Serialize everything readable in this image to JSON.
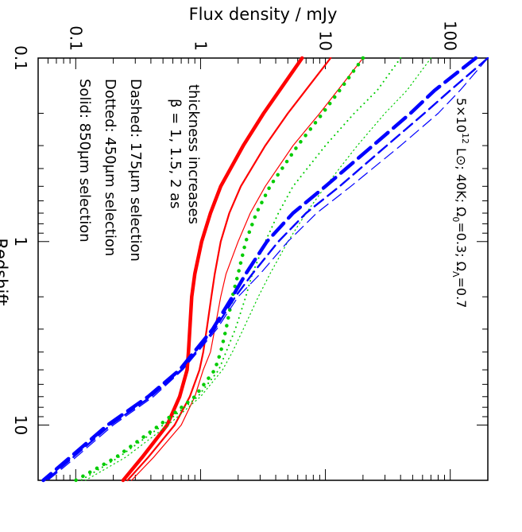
{
  "chart_data": {
    "type": "line",
    "orientation": "rotated-90-clockwise",
    "x_axis": {
      "label": "Redshift",
      "scale": "log",
      "range": [
        0.1,
        20
      ],
      "tick_labels": [
        "0.1",
        "1",
        "10"
      ]
    },
    "y_axis": {
      "label": "Flux density / mJy",
      "scale": "log",
      "range": [
        0.05,
        200
      ],
      "tick_labels": [
        "100",
        "10",
        "1",
        "0.1"
      ]
    },
    "annotations": {
      "legend_lines": [
        "Solid: 850μm selection",
        "Dotted: 450μm selection",
        "Dashed: 175μm selection"
      ],
      "beta_lines": [
        "β = 1, 1.5, 2 as",
        "thickness increases"
      ],
      "model_prefix": "5×10",
      "model_exp": "12",
      "model_text": " L⊙; 40K; Ω",
      "model_om_sub": "0",
      "model_mid": "=0.3; Ω",
      "model_ol_sub": "Λ",
      "model_end": "=0.7"
    },
    "series": [
      {
        "name": "850μm, β=1",
        "color": "#ff0000",
        "dash": "solid",
        "width": 1.2,
        "x": [
          0.1,
          0.2,
          0.3,
          0.5,
          0.7,
          1,
          1.5,
          2,
          3,
          4,
          5,
          7,
          10,
          15,
          20
        ],
        "y": [
          20,
          9,
          5.5,
          3.3,
          2.5,
          2.0,
          1.6,
          1.45,
          1.3,
          1.2,
          1.05,
          0.9,
          0.7,
          0.42,
          0.28
        ]
      },
      {
        "name": "850μm, β=1.5",
        "color": "#ff0000",
        "dash": "solid",
        "width": 2.2,
        "x": [
          0.1,
          0.2,
          0.3,
          0.5,
          0.7,
          1,
          1.5,
          2,
          3,
          4,
          5,
          7,
          10,
          15,
          20
        ],
        "y": [
          11,
          5.0,
          3.3,
          2.1,
          1.7,
          1.45,
          1.3,
          1.22,
          1.12,
          1.05,
          0.98,
          0.82,
          0.62,
          0.38,
          0.26
        ]
      },
      {
        "name": "850μm, β=2",
        "color": "#ff0000",
        "dash": "solid",
        "width": 4.5,
        "x": [
          0.1,
          0.2,
          0.3,
          0.5,
          0.7,
          1,
          1.5,
          2,
          3,
          4,
          5,
          7,
          10,
          15,
          20
        ],
        "y": [
          6.5,
          3.2,
          2.2,
          1.45,
          1.2,
          1.02,
          0.9,
          0.85,
          0.82,
          0.8,
          0.78,
          0.68,
          0.54,
          0.34,
          0.24
        ]
      },
      {
        "name": "450μm, β=1",
        "color": "#00cc00",
        "dash": "dotted-fine",
        "width": 1.2,
        "x": [
          0.1,
          0.15,
          0.2,
          0.3,
          0.5,
          0.7,
          1,
          1.5,
          2,
          3,
          4,
          5,
          7,
          10,
          15,
          20
        ],
        "y": [
          70,
          45,
          30,
          18,
          10,
          7,
          5,
          3.6,
          2.9,
          2.2,
          1.8,
          1.5,
          1.0,
          0.55,
          0.25,
          0.12
        ]
      },
      {
        "name": "450μm, β=1.5",
        "color": "#00cc00",
        "dash": "dotted-medium",
        "width": 2,
        "x": [
          0.1,
          0.15,
          0.2,
          0.3,
          0.5,
          0.7,
          1,
          1.5,
          2,
          3,
          4,
          5,
          7,
          10,
          15,
          20
        ],
        "y": [
          40,
          26,
          17,
          10,
          5.5,
          4.2,
          3.3,
          2.6,
          2.3,
          1.9,
          1.6,
          1.4,
          0.95,
          0.5,
          0.22,
          0.11
        ]
      },
      {
        "name": "450μm, β=2",
        "color": "#00cc00",
        "dash": "dotted-heavy",
        "width": 4.5,
        "x": [
          0.1,
          0.15,
          0.2,
          0.3,
          0.5,
          0.7,
          1,
          1.5,
          2,
          3,
          4,
          5,
          7,
          10,
          15,
          20
        ],
        "y": [
          20,
          13,
          9.5,
          6.0,
          3.6,
          2.8,
          2.3,
          2.0,
          1.8,
          1.6,
          1.45,
          1.3,
          0.9,
          0.47,
          0.21,
          0.1
        ]
      },
      {
        "name": "175μm, β=1",
        "color": "#0000ff",
        "dash": "dashed",
        "width": 1.2,
        "x": [
          0.1,
          0.15,
          0.2,
          0.3,
          0.5,
          0.7,
          1,
          1.5,
          2,
          3,
          5,
          7,
          10,
          15,
          20
        ],
        "y": [
          200,
          120,
          80,
          40,
          16,
          8.5,
          5.0,
          3.0,
          2.0,
          1.35,
          0.72,
          0.42,
          0.2,
          0.1,
          0.06
        ]
      },
      {
        "name": "175μm, β=1.5",
        "color": "#0000ff",
        "dash": "dashed",
        "width": 2.4,
        "x": [
          0.1,
          0.15,
          0.2,
          0.3,
          0.5,
          0.7,
          1,
          1.5,
          2,
          3,
          5,
          7,
          10,
          15,
          20
        ],
        "y": [
          200,
          100,
          62,
          31,
          13,
          7.0,
          4.2,
          2.6,
          1.9,
          1.3,
          0.7,
          0.4,
          0.19,
          0.095,
          0.058
        ]
      },
      {
        "name": "175μm, β=2",
        "color": "#0000ff",
        "dash": "dashed-heavy",
        "width": 4.5,
        "x": [
          0.1,
          0.15,
          0.2,
          0.3,
          0.5,
          0.7,
          1,
          1.5,
          2,
          3,
          5,
          7,
          10,
          15,
          20
        ],
        "y": [
          160,
          75,
          48,
          24,
          10,
          5.5,
          3.4,
          2.3,
          1.8,
          1.25,
          0.68,
          0.38,
          0.18,
          0.09,
          0.055
        ]
      }
    ]
  }
}
